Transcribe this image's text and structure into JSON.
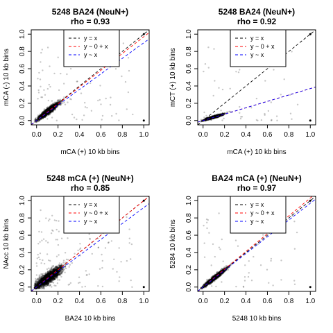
{
  "chart_data": [
    {
      "type": "scatter",
      "title": "5248 BA24 (NeuN+)",
      "subtitle": "rho = 0.93",
      "xlabel": "mCA (+) 10 kb bins",
      "ylabel": "mCA (-) 10 kb bins",
      "xlim": [
        -0.05,
        1.05
      ],
      "ylim": [
        -0.05,
        1.05
      ],
      "xticks": [
        "0.0",
        "0.2",
        "0.4",
        "0.6",
        "0.8",
        "1.0"
      ],
      "yticks": [
        "0.0",
        "0.2",
        "0.4",
        "0.6",
        "0.8",
        "1.0"
      ],
      "grid": false,
      "legend_position": "top-center",
      "cloud": {
        "mean_x": 0.11,
        "mean_y": 0.11,
        "sd": 0.045,
        "rho": 0.93,
        "count": 2500
      },
      "series": [
        {
          "name": "y = x",
          "intercept": 0,
          "slope": 1,
          "color": "#000000"
        },
        {
          "name": "y ~ 0 + x",
          "intercept": 0,
          "slope": 0.97,
          "color": "#ff0000"
        },
        {
          "name": "y ~ x",
          "intercept": 0,
          "slope": 0.9,
          "color": "#0000ff"
        }
      ]
    },
    {
      "type": "scatter",
      "title": "5248 BA24 (NeuN+)",
      "subtitle": "rho = 0.92",
      "xlabel": "mCA (+) 10 kb bins",
      "ylabel": "mCT (+) 10 kb bins",
      "xlim": [
        -0.05,
        1.05
      ],
      "ylim": [
        -0.05,
        1.05
      ],
      "xticks": [
        "0.0",
        "0.2",
        "0.4",
        "0.6",
        "0.8",
        "1.0"
      ],
      "yticks": [
        "0.0",
        "0.2",
        "0.4",
        "0.6",
        "0.8",
        "1.0"
      ],
      "grid": false,
      "legend_position": "top-center",
      "cloud": {
        "mean_x": 0.1,
        "mean_y": 0.04,
        "sd": 0.04,
        "rho": 0.92,
        "count": 1800
      },
      "series": [
        {
          "name": "y = x",
          "intercept": 0,
          "slope": 1,
          "color": "#000000"
        },
        {
          "name": "y ~ 0 + x",
          "intercept": 0,
          "slope": 0.37,
          "color": "#ff0000"
        },
        {
          "name": "y ~ x",
          "intercept": 0,
          "slope": 0.37,
          "color": "#0000ff"
        }
      ]
    },
    {
      "type": "scatter",
      "title": "5248 mCA (+) (NeuN+)",
      "subtitle": "rho = 0.85",
      "xlabel": "BA24 10 kb bins",
      "ylabel": "NAcc 10 kb bins",
      "xlim": [
        -0.05,
        1.05
      ],
      "ylim": [
        -0.05,
        1.05
      ],
      "xticks": [
        "0.0",
        "0.2",
        "0.4",
        "0.6",
        "0.8",
        "1.0"
      ],
      "yticks": [
        "0.0",
        "0.2",
        "0.4",
        "0.6",
        "0.8",
        "1.0"
      ],
      "grid": false,
      "legend_position": "top-center",
      "cloud": {
        "mean_x": 0.11,
        "mean_y": 0.11,
        "sd": 0.06,
        "rho": 0.85,
        "count": 3000
      },
      "series": [
        {
          "name": "y = x",
          "intercept": 0,
          "slope": 1,
          "color": "#000000"
        },
        {
          "name": "y ~ 0 + x",
          "intercept": 0,
          "slope": 1,
          "color": "#ff0000"
        },
        {
          "name": "y ~ x",
          "intercept": 0,
          "slope": 0.92,
          "color": "#0000ff"
        }
      ]
    },
    {
      "type": "scatter",
      "title": "BA24 mCA (+) (NeuN+)",
      "subtitle": "rho = 0.97",
      "xlabel": "5248 10 kb bins",
      "ylabel": "5284 10 kb bins",
      "xlim": [
        -0.05,
        1.05
      ],
      "ylim": [
        -0.05,
        1.05
      ],
      "xticks": [
        "0.0",
        "0.2",
        "0.4",
        "0.6",
        "0.8",
        "1.0"
      ],
      "yticks": [
        "0.0",
        "0.2",
        "0.4",
        "0.6",
        "0.8",
        "1.0"
      ],
      "grid": false,
      "legend_position": "top-center",
      "cloud": {
        "mean_x": 0.11,
        "mean_y": 0.11,
        "sd": 0.05,
        "rho": 0.97,
        "count": 2000
      },
      "series": [
        {
          "name": "y = x",
          "intercept": 0,
          "slope": 1,
          "color": "#000000"
        },
        {
          "name": "y ~ 0 + x",
          "intercept": 0,
          "slope": 1.03,
          "color": "#ff0000"
        },
        {
          "name": "y ~ x",
          "intercept": 0,
          "slope": 0.97,
          "color": "#0000ff"
        }
      ]
    }
  ]
}
